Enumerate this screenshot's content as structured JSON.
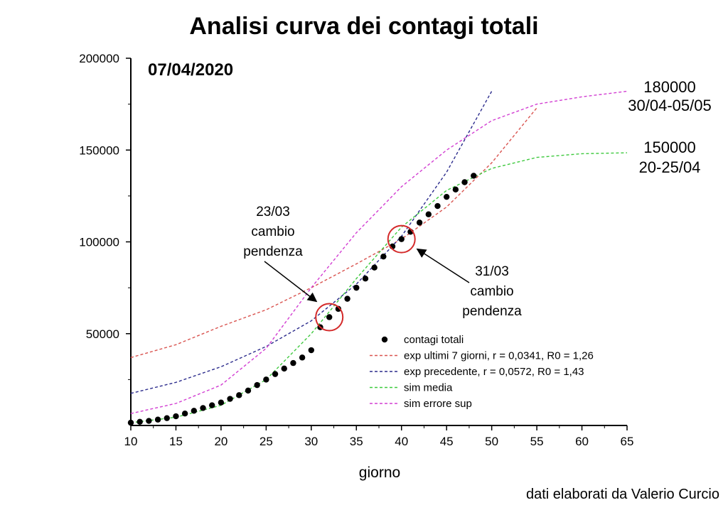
{
  "chart_data": {
    "type": "scatter",
    "title": "Analisi curva dei contagi totali",
    "subtitle": "07/04/2020",
    "xlabel": "giorno",
    "ylabel": "",
    "xlim": [
      10,
      65
    ],
    "ylim": [
      0,
      200000
    ],
    "x_ticks": [
      "10",
      "15",
      "20",
      "25",
      "30",
      "35",
      "40",
      "45",
      "50",
      "55",
      "60",
      "65"
    ],
    "y_ticks": [
      "50000",
      "100000",
      "150000",
      "200000"
    ],
    "grid": false,
    "legend_position": "lower-right",
    "series": [
      {
        "name": "contagi totali",
        "kind": "points",
        "color": "#000000",
        "x": [
          10,
          11,
          12,
          13,
          14,
          15,
          16,
          17,
          18,
          19,
          20,
          21,
          22,
          23,
          24,
          25,
          26,
          27,
          28,
          29,
          30,
          31,
          32,
          33,
          34,
          35,
          36,
          37,
          38,
          39,
          40,
          41,
          42,
          43,
          44,
          45,
          46,
          47,
          48
        ],
        "y": [
          1500,
          2000,
          2500,
          3200,
          4000,
          5000,
          6500,
          8000,
          9500,
          11000,
          12500,
          14500,
          16500,
          19000,
          22000,
          25000,
          28000,
          31000,
          34000,
          37000,
          41000,
          53500,
          59000,
          63500,
          69000,
          75000,
          80000,
          86000,
          92000,
          97500,
          101500,
          105500,
          110500,
          115000,
          119500,
          124500,
          128500,
          132500,
          136000
        ]
      },
      {
        "name": "exp ultimi 7 giorni, r = 0,0341, R0 = 1,26",
        "kind": "line",
        "dashed": true,
        "color": "#d9534f",
        "x": [
          10,
          15,
          20,
          25,
          30,
          35,
          40,
          45,
          50,
          55
        ],
        "y": [
          37000,
          44000,
          54000,
          63000,
          75000,
          88000,
          101500,
          119000,
          143000,
          173000
        ]
      },
      {
        "name": "exp precedente, r = 0,0572, R0 = 1,43",
        "kind": "line",
        "dashed": true,
        "color": "#2b2b8c",
        "x": [
          10,
          15,
          20,
          25,
          30,
          35,
          40,
          45,
          50
        ],
        "y": [
          17500,
          23500,
          32000,
          43000,
          57000,
          77000,
          103000,
          138000,
          182000
        ]
      },
      {
        "name": "sim media",
        "kind": "line",
        "dashed": true,
        "color": "#3ec93e",
        "x": [
          10,
          15,
          20,
          25,
          30,
          35,
          40,
          45,
          50,
          55,
          60,
          65
        ],
        "y": [
          1500,
          4500,
          11000,
          25000,
          50000,
          80000,
          108000,
          128000,
          140000,
          146000,
          148000,
          148500
        ]
      },
      {
        "name": "sim errore sup",
        "kind": "line",
        "dashed": true,
        "color": "#d23ed2",
        "x": [
          10,
          15,
          20,
          25,
          30,
          35,
          40,
          45,
          50,
          55,
          60,
          65
        ],
        "y": [
          6500,
          12000,
          22000,
          42000,
          75000,
          105000,
          130000,
          150000,
          166000,
          175000,
          179000,
          182000
        ]
      }
    ],
    "annotations": [
      {
        "lines": [
          "23/03",
          "cambio",
          "pendenza"
        ],
        "target_x": 32,
        "target_y": 59000
      },
      {
        "lines": [
          "31/03",
          "cambio",
          "pendenza"
        ],
        "target_x": 40,
        "target_y": 101500
      }
    ],
    "projections": [
      {
        "lines": [
          "180000",
          "30/04-05/05"
        ]
      },
      {
        "lines": [
          "150000",
          "20-25/04"
        ]
      }
    ],
    "credit": "dati elaborati da Valerio Curcio"
  }
}
